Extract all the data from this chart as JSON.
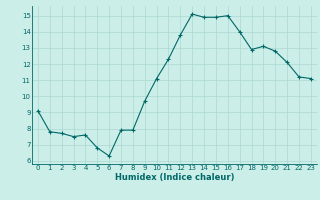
{
  "x": [
    0,
    1,
    2,
    3,
    4,
    5,
    6,
    7,
    8,
    9,
    10,
    11,
    12,
    13,
    14,
    15,
    16,
    17,
    18,
    19,
    20,
    21,
    22,
    23
  ],
  "y": [
    9.1,
    7.8,
    7.7,
    7.5,
    7.6,
    6.8,
    6.3,
    7.9,
    7.9,
    9.7,
    11.1,
    12.3,
    13.8,
    15.1,
    14.9,
    14.9,
    15.0,
    14.0,
    12.9,
    13.1,
    12.8,
    12.1,
    11.2,
    11.1
  ],
  "xlabel": "Humidex (Indice chaleur)",
  "ylim": [
    5.8,
    15.6
  ],
  "xlim": [
    -0.5,
    23.5
  ],
  "bg_color": "#cceee8",
  "grid_color": "#aad8d0",
  "line_color": "#006868",
  "marker_color": "#006868",
  "yticks": [
    6,
    7,
    8,
    9,
    10,
    11,
    12,
    13,
    14,
    15
  ],
  "xticks": [
    0,
    1,
    2,
    3,
    4,
    5,
    6,
    7,
    8,
    9,
    10,
    11,
    12,
    13,
    14,
    15,
    16,
    17,
    18,
    19,
    20,
    21,
    22,
    23
  ],
  "tick_fontsize": 5.0,
  "xlabel_fontsize": 6.0
}
